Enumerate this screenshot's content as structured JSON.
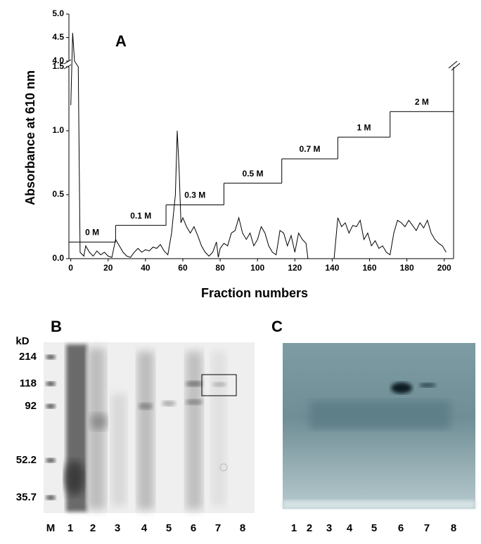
{
  "chart_data": {
    "type": "line",
    "panel_label": "A",
    "x_label": "Fraction numbers",
    "y_label": "Absorbance at 610 nm",
    "xlim": [
      -1,
      205
    ],
    "xticks": [
      0,
      20,
      40,
      60,
      80,
      100,
      120,
      140,
      160,
      180,
      200
    ],
    "ylim": [
      0,
      1.5
    ],
    "yticks": [
      {
        "value": 0,
        "label": "0.0"
      },
      {
        "value": 0.5,
        "label": "0.5"
      },
      {
        "value": 1,
        "label": "1.0"
      },
      {
        "value": 1.5,
        "label": "1.5"
      }
    ],
    "ylim_upper": [
      4,
      5
    ],
    "yticks_upper": [
      {
        "value": 4,
        "label": "4.0"
      },
      4.5,
      {
        "value": 5,
        "label": "5.0"
      }
    ],
    "axis_break": true,
    "series": [
      {
        "color": "#000000",
        "x": [
          0,
          1,
          2,
          4,
          5,
          7,
          8,
          10,
          12,
          14,
          16,
          18,
          20,
          22,
          24,
          26,
          28,
          30,
          32,
          34,
          36,
          38,
          40,
          42,
          44,
          46,
          48,
          50,
          52,
          54,
          56,
          57,
          58,
          59,
          60,
          62,
          64,
          66,
          68,
          70,
          72,
          74,
          76,
          78,
          79,
          80,
          82,
          84,
          86,
          88,
          90,
          92,
          94,
          96,
          98,
          100,
          102,
          104,
          106,
          108,
          110,
          112,
          114,
          116,
          118,
          120,
          122,
          124,
          126,
          127,
          134,
          141,
          143,
          145,
          147,
          149,
          151,
          153,
          155,
          157,
          159,
          161,
          163,
          165,
          167,
          169,
          171,
          173,
          175,
          177,
          179,
          181,
          183,
          185,
          187,
          189,
          191,
          193,
          195,
          197,
          199,
          201
        ],
        "values": [
          1.2,
          4.6,
          4.0,
          1.5,
          0.05,
          0.02,
          0.1,
          0.05,
          0.02,
          0.06,
          0.03,
          0.05,
          0.02,
          0.01,
          0.15,
          0.1,
          0.05,
          0.02,
          0.01,
          0.05,
          0.08,
          0.05,
          0.07,
          0.06,
          0.09,
          0.08,
          0.11,
          0.06,
          0.03,
          0.2,
          0.5,
          1.0,
          0.7,
          0.28,
          0.32,
          0.25,
          0.2,
          0.25,
          0.18,
          0.1,
          0.05,
          0.02,
          0.05,
          0.13,
          0.01,
          0.08,
          0.12,
          0.1,
          0.2,
          0.22,
          0.32,
          0.2,
          0.15,
          0.2,
          0.1,
          0.15,
          0.25,
          0.2,
          0.1,
          0.05,
          0.03,
          0.22,
          0.2,
          0.1,
          0.18,
          0.05,
          0.2,
          0.15,
          0.12,
          0.0,
          null,
          0.0,
          0.32,
          0.25,
          0.28,
          0.2,
          0.26,
          0.25,
          0.3,
          0.15,
          0.2,
          0.1,
          0.14,
          0.08,
          0.1,
          0.05,
          0.03,
          0.2,
          0.3,
          0.28,
          0.25,
          0.3,
          0.26,
          0.22,
          0.28,
          0.24,
          0.3,
          0.2,
          0.15,
          0.12,
          0.1,
          0.05
        ]
      }
    ],
    "steps": [
      {
        "label": "0 M",
        "start": -1,
        "end": 24,
        "level": 0.13
      },
      {
        "label": "0.1 M",
        "start": 24,
        "end": 51,
        "level": 0.26
      },
      {
        "label": "0.3 M",
        "start": 51,
        "end": 82,
        "level": 0.42
      },
      {
        "label": "0.5 M",
        "start": 82,
        "end": 113,
        "level": 0.59
      },
      {
        "label": "0.7 M",
        "start": 113,
        "end": 143,
        "level": 0.78
      },
      {
        "label": "1 M",
        "start": 143,
        "end": 171,
        "level": 0.95
      },
      {
        "label": "2 M",
        "start": 171,
        "end": 205,
        "level": 1.15
      }
    ]
  },
  "gel_b": {
    "panel_label": "B",
    "unit": "kD",
    "markers": [
      "214",
      "118",
      "92",
      "52.2",
      "35.7"
    ],
    "lanes": [
      "M",
      "1",
      "2",
      "3",
      "4",
      "5",
      "6",
      "7",
      "8"
    ]
  },
  "gel_c": {
    "panel_label": "C",
    "lanes": [
      "1",
      "2",
      "3",
      "4",
      "5",
      "6",
      "7",
      "8"
    ]
  }
}
